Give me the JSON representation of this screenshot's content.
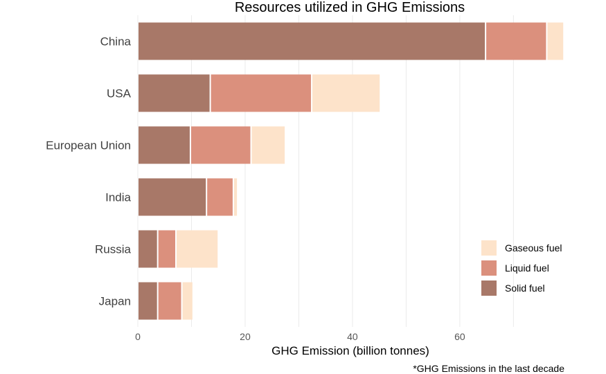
{
  "chart_data": {
    "type": "bar",
    "orientation": "horizontal",
    "stacked": true,
    "title": "Resources utilized in GHG Emissions",
    "xlabel": "GHG Emission (billion tonnes)",
    "ylabel": "",
    "caption": "*GHG Emissions in the last decade",
    "xlim": [
      0,
      79.5
    ],
    "x_ticks": [
      0,
      20,
      40,
      60
    ],
    "grid": true,
    "legend_position": "right",
    "categories": [
      "China",
      "USA",
      "European Union",
      "India",
      "Russia",
      "Japan"
    ],
    "series": [
      {
        "name": "Solid fuel",
        "color": "#a87868",
        "values": [
          64.8,
          13.5,
          9.8,
          12.8,
          3.7,
          3.7
        ]
      },
      {
        "name": "Liquid fuel",
        "color": "#db907d",
        "values": [
          11.4,
          18.9,
          11.3,
          5.0,
          3.4,
          4.5
        ]
      },
      {
        "name": "Gaseous fuel",
        "color": "#fde3ca",
        "values": [
          3.2,
          12.8,
          6.4,
          0.8,
          7.9,
          2.1
        ]
      }
    ],
    "legend_order": [
      "Gaseous fuel",
      "Liquid fuel",
      "Solid fuel"
    ]
  }
}
